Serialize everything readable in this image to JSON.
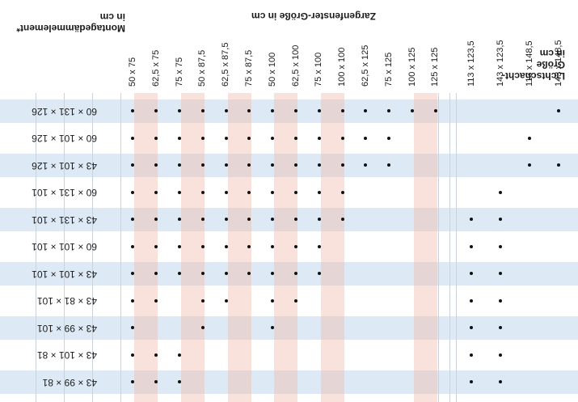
{
  "header": {
    "row_title": [
      "Lichtschacht-",
      "Größe",
      "in cm"
    ],
    "col_title": "Zargenfenster-Größe in cm",
    "mount_title": [
      "Montagedämmelement*",
      "in cm"
    ]
  },
  "rows": [
    {
      "label": "43 × 99 × 81"
    },
    {
      "label": "43 × 101 × 81"
    },
    {
      "label": "43 × 99 × 101"
    },
    {
      "label": "43 × 81 × 101"
    },
    {
      "label": "43 × 101 × 101"
    },
    {
      "label": "60 × 101 × 101"
    },
    {
      "label": "43 × 131 × 101"
    },
    {
      "label": "60 × 131 × 101"
    },
    {
      "label": "43 × 101 × 126"
    },
    {
      "label": "60 × 101 × 126"
    },
    {
      "label": "60 × 131 × 126"
    }
  ],
  "columns": [
    "50 x 75",
    "62,5 x 75",
    "75 x 75",
    "50 x 87,5",
    "62,5 x 87,5",
    "75 x 87,5",
    "50 x 100",
    "62,5 x 100",
    "75 x 100",
    "100 x 100",
    "62,5 x 125",
    "75 x 125",
    "100 x 125",
    "125 x 125"
  ],
  "mount_columns": [
    "113 x 123,5",
    "143 x 123,5",
    "113 x 148,5",
    "143 x 148,5"
  ],
  "dots": [
    [
      1,
      1,
      1,
      0,
      0,
      0,
      0,
      0,
      0,
      0,
      0,
      0,
      0,
      0
    ],
    [
      1,
      1,
      1,
      0,
      0,
      0,
      0,
      0,
      0,
      0,
      0,
      0,
      0,
      0
    ],
    [
      1,
      0,
      0,
      1,
      0,
      0,
      1,
      0,
      0,
      0,
      0,
      0,
      0,
      0
    ],
    [
      1,
      1,
      0,
      1,
      1,
      0,
      1,
      1,
      0,
      0,
      0,
      0,
      0,
      0
    ],
    [
      1,
      1,
      1,
      1,
      1,
      1,
      1,
      1,
      1,
      0,
      0,
      0,
      0,
      0
    ],
    [
      1,
      1,
      1,
      1,
      1,
      1,
      1,
      1,
      1,
      0,
      0,
      0,
      0,
      0
    ],
    [
      1,
      1,
      1,
      1,
      1,
      1,
      1,
      1,
      1,
      1,
      0,
      0,
      0,
      0
    ],
    [
      1,
      1,
      1,
      1,
      1,
      1,
      1,
      1,
      1,
      1,
      0,
      0,
      0,
      0
    ],
    [
      1,
      1,
      1,
      1,
      1,
      1,
      1,
      1,
      1,
      1,
      1,
      1,
      0,
      0
    ],
    [
      1,
      1,
      1,
      1,
      1,
      1,
      1,
      1,
      1,
      1,
      1,
      1,
      0,
      0
    ],
    [
      1,
      1,
      1,
      1,
      1,
      1,
      1,
      1,
      1,
      1,
      1,
      1,
      1,
      1
    ]
  ],
  "mount_dots": [
    [
      1,
      1,
      0,
      0
    ],
    [
      1,
      1,
      0,
      0
    ],
    [
      1,
      1,
      0,
      0
    ],
    [
      1,
      1,
      0,
      0
    ],
    [
      1,
      1,
      0,
      0
    ],
    [
      1,
      1,
      0,
      0
    ],
    [
      1,
      1,
      0,
      0
    ],
    [
      0,
      1,
      0,
      0
    ],
    [
      0,
      0,
      1,
      1
    ],
    [
      0,
      0,
      1,
      0
    ],
    [
      0,
      0,
      0,
      1
    ]
  ],
  "colors": {
    "row_blue": "#dde9f5",
    "col_pink": "#f2c9bb",
    "dot": "#111111"
  }
}
